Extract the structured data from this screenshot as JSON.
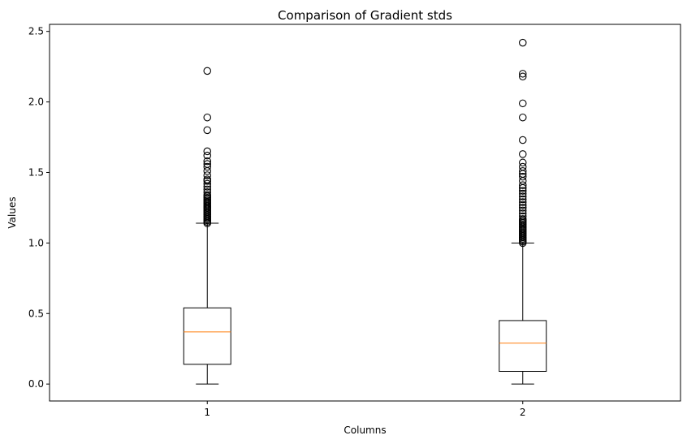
{
  "chart_data": {
    "type": "box",
    "title": "Comparison of Gradient stds",
    "xlabel": "Columns",
    "ylabel": "Values",
    "ylim": [
      -0.12,
      2.55
    ],
    "yticks": [
      0.0,
      0.5,
      1.0,
      1.5,
      2.0,
      2.5
    ],
    "ytick_labels": [
      "0.0",
      "0.5",
      "1.0",
      "1.5",
      "2.0",
      "2.5"
    ],
    "categories": [
      "1",
      "2"
    ],
    "grid": false,
    "box_color": "#000000",
    "median_color": "#ff7f0e",
    "boxes": [
      {
        "name": "1",
        "whisker_low": 0.0,
        "q1": 0.14,
        "median": 0.37,
        "q3": 0.54,
        "whisker_high": 1.14,
        "outliers": [
          1.14,
          1.15,
          1.16,
          1.17,
          1.18,
          1.19,
          1.2,
          1.21,
          1.22,
          1.23,
          1.24,
          1.25,
          1.26,
          1.27,
          1.28,
          1.29,
          1.3,
          1.31,
          1.32,
          1.33,
          1.34,
          1.36,
          1.38,
          1.4,
          1.42,
          1.44,
          1.45,
          1.48,
          1.51,
          1.54,
          1.56,
          1.58,
          1.62,
          1.65,
          1.8,
          1.89,
          2.22
        ]
      },
      {
        "name": "2",
        "whisker_low": 0.0,
        "q1": 0.09,
        "median": 0.29,
        "q3": 0.45,
        "whisker_high": 1.0,
        "outliers": [
          1.0,
          1.01,
          1.02,
          1.03,
          1.04,
          1.05,
          1.06,
          1.07,
          1.08,
          1.09,
          1.1,
          1.11,
          1.12,
          1.13,
          1.14,
          1.15,
          1.16,
          1.17,
          1.19,
          1.21,
          1.23,
          1.25,
          1.27,
          1.29,
          1.31,
          1.33,
          1.35,
          1.37,
          1.39,
          1.41,
          1.44,
          1.47,
          1.49,
          1.51,
          1.54,
          1.57,
          1.63,
          1.73,
          1.89,
          1.99,
          2.18,
          2.2,
          2.42
        ]
      }
    ]
  }
}
